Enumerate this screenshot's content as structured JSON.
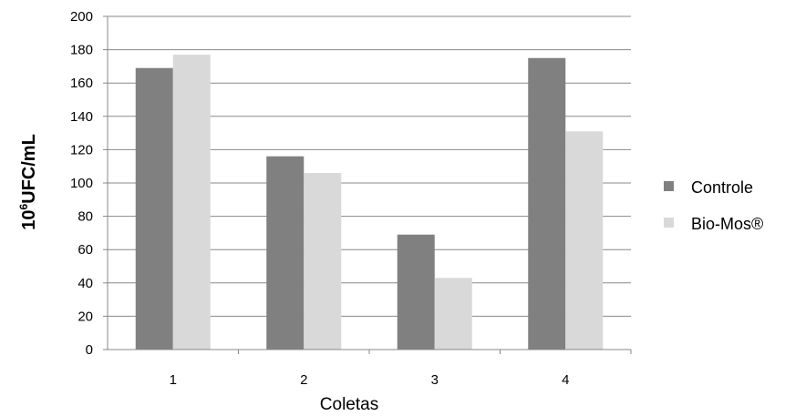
{
  "chart_data": {
    "type": "bar",
    "categories": [
      "1",
      "2",
      "3",
      "4"
    ],
    "series": [
      {
        "name": "Controle",
        "values": [
          169,
          116,
          69,
          175
        ],
        "color": "#808080"
      },
      {
        "name": "Bio-Mos®",
        "values": [
          177,
          106,
          43,
          131
        ],
        "color": "#d9d9d9"
      }
    ],
    "yticks": [
      "0",
      "20",
      "40",
      "60",
      "80",
      "100",
      "120",
      "140",
      "160",
      "180",
      "200"
    ],
    "xlabel": "Coletas",
    "ylabel_base": "10",
    "ylabel_sup": "6",
    "ylabel_rest": "UFC/mL",
    "ylim": [
      0,
      200
    ],
    "grid": true,
    "legend_position": "right"
  }
}
